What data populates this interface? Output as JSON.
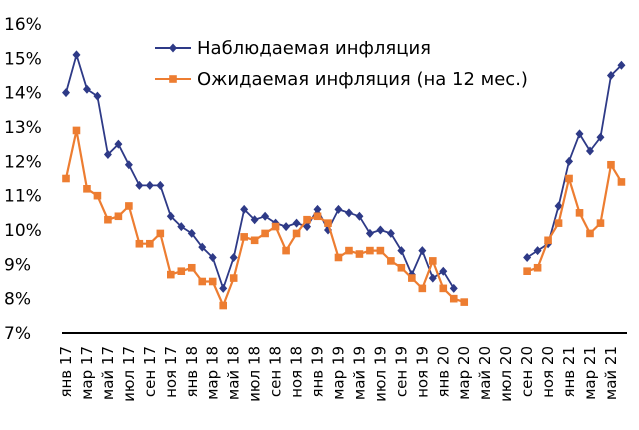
{
  "chart_data": {
    "type": "line",
    "ylim": [
      7,
      16
    ],
    "yticks": [
      "7%",
      "8%",
      "9%",
      "10%",
      "11%",
      "12%",
      "13%",
      "14%",
      "15%",
      "16%"
    ],
    "x_tick_labels": [
      "янв 17",
      "мар 17",
      "май 17",
      "июл 17",
      "сен 17",
      "ноя 17",
      "янв 18",
      "мар 18",
      "май 18",
      "июл 18",
      "сен 18",
      "ноя 18",
      "янв 19",
      "мар 19",
      "май 19",
      "июл 19",
      "сен 19",
      "ноя 19",
      "янв 20",
      "мар 20",
      "май 20",
      "июл 20",
      "сен 20",
      "ноя 20",
      "янв 21",
      "мар 21",
      "май 21"
    ],
    "legend_position": "top-right",
    "series": [
      {
        "name": "Наблюдаемая инфляция",
        "color": "#2e3a87",
        "marker": "diamond",
        "values": [
          14.0,
          15.1,
          14.1,
          13.9,
          12.2,
          12.5,
          11.9,
          11.3,
          11.3,
          11.3,
          10.4,
          10.1,
          9.9,
          9.5,
          9.2,
          8.3,
          9.2,
          10.6,
          10.3,
          10.4,
          10.2,
          10.1,
          10.2,
          10.1,
          10.6,
          10.0,
          10.6,
          10.5,
          10.4,
          9.9,
          10.0,
          9.9,
          9.4,
          8.7,
          9.4,
          8.6,
          8.8,
          8.3,
          null,
          null,
          null,
          null,
          null,
          null,
          9.2,
          9.4,
          9.6,
          10.7,
          12.0,
          12.8,
          12.3,
          12.7,
          14.5,
          14.8
        ]
      },
      {
        "name": "Ожидаемая инфляция (на 12 мес.)",
        "color": "#ed7d31",
        "marker": "square",
        "values": [
          11.5,
          12.9,
          11.2,
          11.0,
          10.3,
          10.4,
          10.7,
          9.6,
          9.6,
          9.9,
          8.7,
          8.8,
          8.9,
          8.5,
          8.5,
          7.8,
          8.6,
          9.8,
          9.7,
          9.9,
          10.1,
          9.4,
          9.9,
          10.3,
          10.4,
          10.2,
          9.2,
          9.4,
          9.3,
          9.4,
          9.4,
          9.1,
          8.9,
          8.6,
          8.3,
          9.1,
          8.3,
          8.0,
          7.9,
          null,
          null,
          null,
          null,
          null,
          8.8,
          8.9,
          9.7,
          10.2,
          11.5,
          10.5,
          9.9,
          10.2,
          11.9,
          11.4
        ]
      }
    ]
  }
}
